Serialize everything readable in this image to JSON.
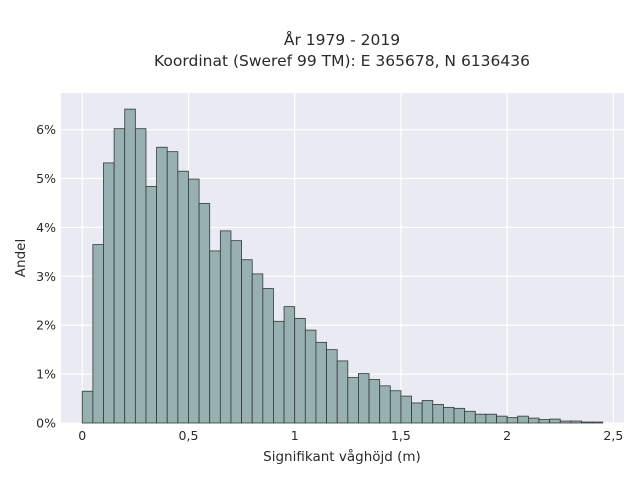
{
  "chart_data": {
    "type": "bar",
    "title": "År 1979 - 2019",
    "subtitle": "Koordinat (Sweref 99 TM): E 365678, N 6136436",
    "xlabel": "Signifikant våghöjd (m)",
    "ylabel": "Andel",
    "xlim": [
      -0.1,
      2.55
    ],
    "ylim": [
      0,
      6.75
    ],
    "bin_width": 0.05,
    "x_ticks": [
      {
        "value": 0,
        "label": "0"
      },
      {
        "value": 0.5,
        "label": "0,5"
      },
      {
        "value": 1,
        "label": "1"
      },
      {
        "value": 1.5,
        "label": "1,5"
      },
      {
        "value": 2,
        "label": "2"
      },
      {
        "value": 2.5,
        "label": "2,5"
      }
    ],
    "y_ticks": [
      {
        "value": 0,
        "label": "0%"
      },
      {
        "value": 1,
        "label": "1%"
      },
      {
        "value": 2,
        "label": "2%"
      },
      {
        "value": 3,
        "label": "3%"
      },
      {
        "value": 4,
        "label": "4%"
      },
      {
        "value": 5,
        "label": "5%"
      },
      {
        "value": 6,
        "label": "6%"
      }
    ],
    "grid": true,
    "x": [
      0.025,
      0.075,
      0.125,
      0.175,
      0.225,
      0.275,
      0.325,
      0.375,
      0.425,
      0.475,
      0.525,
      0.575,
      0.625,
      0.675,
      0.725,
      0.775,
      0.825,
      0.875,
      0.925,
      0.975,
      1.025,
      1.075,
      1.125,
      1.175,
      1.225,
      1.275,
      1.325,
      1.375,
      1.425,
      1.475,
      1.525,
      1.575,
      1.625,
      1.675,
      1.725,
      1.775,
      1.825,
      1.875,
      1.925,
      1.975,
      2.025,
      2.075,
      2.125,
      2.175,
      2.225,
      2.275,
      2.325,
      2.375,
      2.425
    ],
    "values": [
      0.65,
      3.65,
      5.32,
      6.02,
      6.42,
      6.02,
      4.84,
      5.64,
      5.55,
      5.15,
      4.99,
      4.49,
      3.52,
      3.93,
      3.73,
      3.34,
      3.05,
      2.75,
      2.08,
      2.38,
      2.14,
      1.9,
      1.65,
      1.5,
      1.27,
      0.93,
      1.01,
      0.89,
      0.76,
      0.66,
      0.55,
      0.41,
      0.46,
      0.38,
      0.32,
      0.3,
      0.24,
      0.18,
      0.18,
      0.14,
      0.11,
      0.14,
      0.1,
      0.07,
      0.08,
      0.04,
      0.04,
      0.02,
      0.02
    ]
  }
}
